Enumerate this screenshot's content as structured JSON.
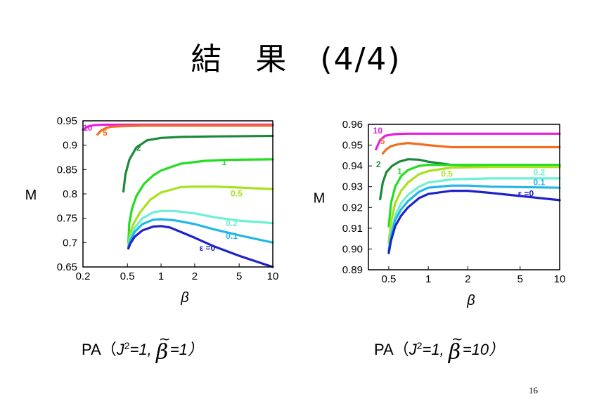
{
  "slide": {
    "title": "結　果　(4/4)",
    "page_number": "16"
  },
  "captions": [
    {
      "prefix": "PA（",
      "j": "J",
      "sup": "2",
      "mid": "=1,  ",
      "beta": "β",
      "tilde": "~",
      "suffix": "=1）"
    },
    {
      "prefix": "PA（",
      "j": "J",
      "sup": "2",
      "mid": "=1,  ",
      "beta": "β",
      "tilde": "~",
      "suffix": "=10）"
    }
  ],
  "chart_data": [
    {
      "type": "line",
      "xlabel": "β",
      "ylabel": "M",
      "xscale": "log",
      "xlim": [
        0.2,
        10
      ],
      "ylim": [
        0.65,
        0.95
      ],
      "xticks": [
        0.2,
        0.5,
        1,
        2,
        5,
        10
      ],
      "xtick_labels": [
        "0.2",
        "0.5",
        "1",
        "2",
        "5",
        "10"
      ],
      "yticks": [
        0.65,
        0.7,
        0.75,
        0.8,
        0.85,
        0.9,
        0.95
      ],
      "ytick_labels": [
        "0.65",
        "0.7",
        "0.75",
        "0.8",
        "0.85",
        "0.9",
        "0.95"
      ],
      "series": [
        {
          "name": "10",
          "color": "#e81ee0",
          "label_pos": [
            0.2,
            0.93
          ],
          "x": [
            0.2,
            0.22,
            0.25,
            0.3,
            0.5,
            1,
            10
          ],
          "y": [
            0.932,
            0.938,
            0.941,
            0.942,
            0.942,
            0.942,
            0.942
          ]
        },
        {
          "name": "5",
          "color": "#f07020",
          "label_pos": [
            0.3,
            0.92
          ],
          "x": [
            0.27,
            0.29,
            0.32,
            0.36,
            0.45,
            0.7,
            1,
            10
          ],
          "y": [
            0.922,
            0.93,
            0.935,
            0.938,
            0.939,
            0.94,
            0.94,
            0.94
          ]
        },
        {
          "name": "2",
          "color": "#1a8a3a",
          "label_pos": [
            0.6,
            0.889
          ],
          "x": [
            0.46,
            0.48,
            0.52,
            0.6,
            0.75,
            1,
            1.5,
            3,
            10
          ],
          "y": [
            0.805,
            0.84,
            0.87,
            0.895,
            0.91,
            0.915,
            0.917,
            0.918,
            0.919
          ]
        },
        {
          "name": "1",
          "color": "#22dd22",
          "label_pos": [
            3.5,
            0.859
          ],
          "x": [
            0.51,
            0.52,
            0.55,
            0.6,
            0.7,
            0.85,
            1,
            1.5,
            2.5,
            4,
            10
          ],
          "y": [
            0.7,
            0.74,
            0.77,
            0.795,
            0.82,
            0.838,
            0.848,
            0.862,
            0.868,
            0.87,
            0.871
          ]
        },
        {
          "name": "0.5",
          "color": "#a8e21c",
          "label_pos": [
            4.2,
            0.795
          ],
          "x": [
            0.51,
            0.53,
            0.57,
            0.65,
            0.8,
            1,
            1.5,
            2,
            3,
            5,
            10
          ],
          "y": [
            0.695,
            0.72,
            0.74,
            0.762,
            0.788,
            0.803,
            0.814,
            0.815,
            0.815,
            0.813,
            0.81
          ]
        },
        {
          "name": "0.2",
          "color": "#6ef0d4",
          "label_pos": [
            3.8,
            0.734
          ],
          "x": [
            0.51,
            0.53,
            0.58,
            0.68,
            0.85,
            1,
            1.3,
            2,
            3,
            5,
            10
          ],
          "y": [
            0.692,
            0.71,
            0.73,
            0.75,
            0.762,
            0.765,
            0.765,
            0.76,
            0.752,
            0.745,
            0.74
          ]
        },
        {
          "name": "0.1",
          "color": "#23b6e6",
          "label_pos": [
            3.8,
            0.708
          ],
          "x": [
            0.51,
            0.53,
            0.58,
            0.68,
            0.85,
            1,
            1.3,
            2,
            3,
            5,
            10
          ],
          "y": [
            0.69,
            0.705,
            0.722,
            0.738,
            0.747,
            0.748,
            0.746,
            0.738,
            0.727,
            0.715,
            0.7
          ]
        },
        {
          "name": "ε =0",
          "color": "#1e22c8",
          "label_pos": [
            2.2,
            0.683
          ],
          "x": [
            0.51,
            0.53,
            0.58,
            0.68,
            0.85,
            1,
            1.2,
            1.5,
            2,
            3,
            5,
            10
          ],
          "y": [
            0.688,
            0.698,
            0.712,
            0.725,
            0.733,
            0.734,
            0.731,
            0.722,
            0.71,
            0.692,
            0.673,
            0.65
          ]
        }
      ]
    },
    {
      "type": "line",
      "xlabel": "β",
      "ylabel": "M",
      "xscale": "log",
      "xlim": [
        0.35,
        10
      ],
      "ylim": [
        0.89,
        0.96
      ],
      "xticks": [
        0.5,
        1,
        2,
        5,
        10
      ],
      "xtick_labels": [
        "0.5",
        "1",
        "2",
        "5",
        "10"
      ],
      "yticks": [
        0.89,
        0.9,
        0.91,
        0.92,
        0.93,
        0.94,
        0.95,
        0.96
      ],
      "ytick_labels": [
        "0.89",
        "0.90",
        "0.91",
        "0.92",
        "0.93",
        "0.94",
        "0.95",
        "0.96"
      ],
      "series": [
        {
          "name": "10",
          "color": "#e81ee0",
          "label_pos": [
            0.38,
            0.9556
          ],
          "x": [
            0.4,
            0.43,
            0.47,
            0.55,
            0.7,
            1,
            2,
            10
          ],
          "y": [
            0.948,
            0.9525,
            0.9545,
            0.9553,
            0.9555,
            0.9555,
            0.9555,
            0.9555
          ]
        },
        {
          "name": "5",
          "color": "#f07020",
          "label_pos": [
            0.43,
            0.9506
          ],
          "x": [
            0.45,
            0.48,
            0.52,
            0.6,
            0.7,
            0.85,
            1,
            1.5,
            3,
            10
          ],
          "y": [
            0.946,
            0.948,
            0.9495,
            0.9505,
            0.951,
            0.9505,
            0.95,
            0.949,
            0.949,
            0.949
          ]
        },
        {
          "name": "2",
          "color": "#1a8a3a",
          "label_pos": [
            0.4,
            0.9393
          ],
          "x": [
            0.43,
            0.45,
            0.48,
            0.53,
            0.6,
            0.7,
            0.85,
            1,
            1.5,
            3,
            10
          ],
          "y": [
            0.924,
            0.932,
            0.937,
            0.94,
            0.942,
            0.9432,
            0.943,
            0.942,
            0.9405,
            0.9402,
            0.9402
          ]
        },
        {
          "name": "1",
          "color": "#22dd22",
          "label_pos": [
            0.58,
            0.936
          ],
          "x": [
            0.5,
            0.52,
            0.56,
            0.62,
            0.7,
            0.85,
            1,
            1.5,
            3,
            10
          ],
          "y": [
            0.911,
            0.922,
            0.93,
            0.935,
            0.938,
            0.94,
            0.9405,
            0.9405,
            0.9405,
            0.9405
          ]
        },
        {
          "name": "0.5",
          "color": "#a8e21c",
          "label_pos": [
            1.25,
            0.9348
          ],
          "x": [
            0.5,
            0.52,
            0.56,
            0.62,
            0.7,
            0.85,
            1,
            1.5,
            3,
            10
          ],
          "y": [
            0.903,
            0.913,
            0.922,
            0.928,
            0.932,
            0.936,
            0.9375,
            0.9392,
            0.9395,
            0.9395
          ]
        },
        {
          "name": "0.2",
          "color": "#6ef0d4",
          "label_pos": [
            6.3,
            0.9355
          ],
          "x": [
            0.5,
            0.52,
            0.56,
            0.62,
            0.7,
            0.85,
            1,
            1.5,
            3,
            10
          ],
          "y": [
            0.9,
            0.908,
            0.916,
            0.922,
            0.926,
            0.93,
            0.932,
            0.9335,
            0.934,
            0.934
          ]
        },
        {
          "name": "0.1",
          "color": "#23b6e6",
          "label_pos": [
            6.3,
            0.9308
          ],
          "x": [
            0.5,
            0.52,
            0.56,
            0.62,
            0.7,
            0.85,
            1,
            1.5,
            2,
            3,
            10
          ],
          "y": [
            0.899,
            0.906,
            0.914,
            0.919,
            0.923,
            0.9275,
            0.9295,
            0.9305,
            0.9305,
            0.93,
            0.9295
          ]
        },
        {
          "name": "ε =0",
          "color": "#1e22c8",
          "label_pos": [
            4.8,
            0.9253
          ],
          "x": [
            0.5,
            0.52,
            0.56,
            0.62,
            0.7,
            0.85,
            1,
            1.5,
            2,
            3,
            5,
            10
          ],
          "y": [
            0.898,
            0.904,
            0.911,
            0.916,
            0.92,
            0.9245,
            0.9265,
            0.928,
            0.928,
            0.927,
            0.9255,
            0.9235
          ]
        }
      ]
    }
  ]
}
